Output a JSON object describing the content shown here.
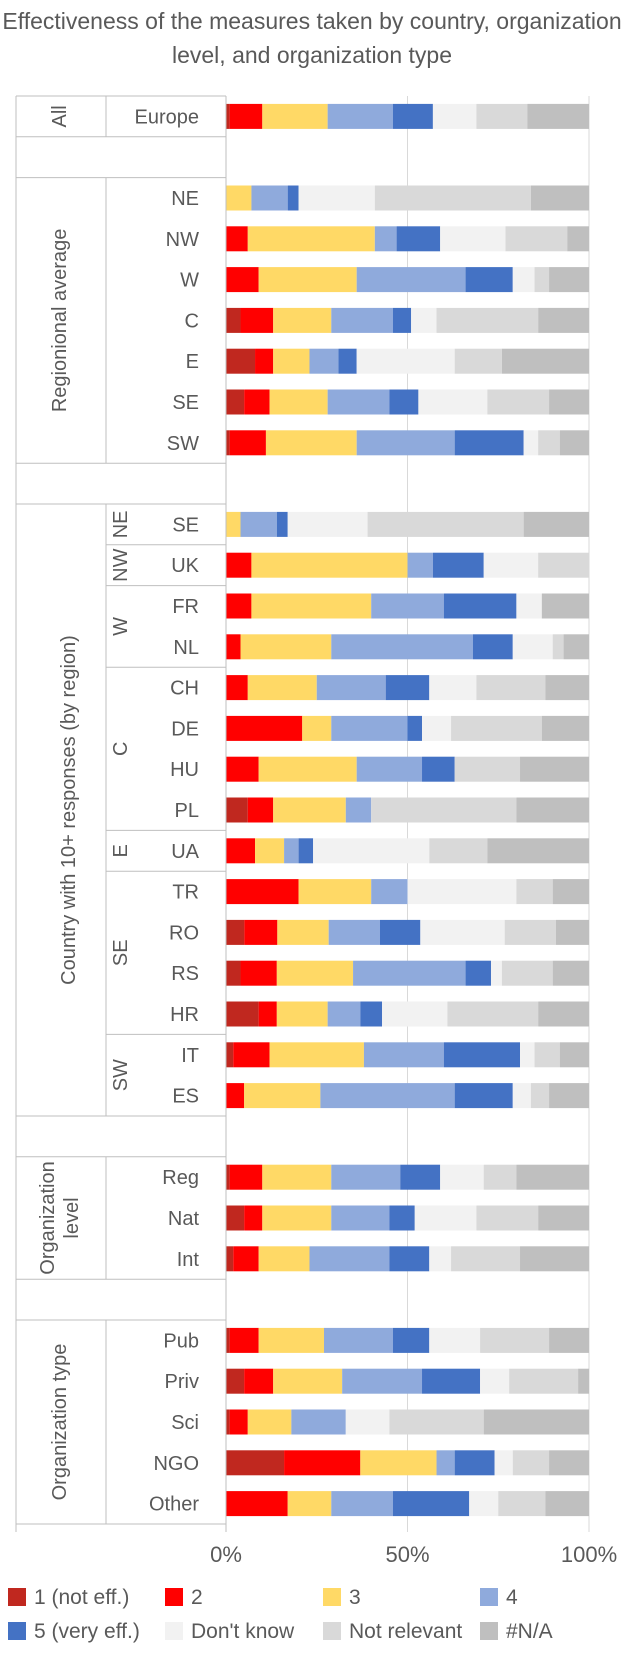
{
  "chart_data": {
    "type": "bar",
    "orientation": "horizontal",
    "stacked": "percent",
    "title": "Effectiveness of the measures taken by country, organization level, and organization type",
    "xlim": [
      0,
      100
    ],
    "xticks": [
      "0%",
      "50%",
      "100%"
    ],
    "legend_position": "bottom",
    "series_names": [
      "1 (not eff.)",
      "2",
      "3",
      "4",
      "5 (very eff.)",
      "Don't know",
      "Not relevant",
      "#N/A"
    ],
    "colors": [
      "#c0281f",
      "#ff0000",
      "#ffd966",
      "#8faadc",
      "#4472c4",
      "#f2f2f2",
      "#d9d9d9",
      "#bfbfbf"
    ],
    "groups": [
      {
        "label": "All",
        "subgroups": [
          {
            "label": "",
            "rows": [
              {
                "label": "Europe",
                "values": [
                  1,
                  9,
                  18,
                  18,
                  11,
                  12,
                  14,
                  17
                ]
              }
            ]
          }
        ]
      },
      {
        "label": "Regionional average",
        "subgroups": [
          {
            "label": "",
            "rows": [
              {
                "label": "NE",
                "values": [
                  0,
                  0,
                  7,
                  10,
                  3,
                  21,
                  43,
                  16
                ]
              },
              {
                "label": "NW",
                "values": [
                  0,
                  6,
                  35,
                  6,
                  12,
                  18,
                  17,
                  6
                ]
              },
              {
                "label": "W",
                "values": [
                  0,
                  9,
                  27,
                  30,
                  13,
                  6,
                  4,
                  11
                ]
              },
              {
                "label": "C",
                "values": [
                  4,
                  9,
                  16,
                  17,
                  5,
                  7,
                  28,
                  14
                ]
              },
              {
                "label": "E",
                "values": [
                  8,
                  5,
                  10,
                  8,
                  5,
                  27,
                  13,
                  24
                ]
              },
              {
                "label": "SE",
                "values": [
                  5,
                  7,
                  16,
                  17,
                  8,
                  19,
                  17,
                  11
                ]
              },
              {
                "label": "SW",
                "values": [
                  1,
                  10,
                  25,
                  27,
                  19,
                  4,
                  6,
                  8
                ]
              }
            ]
          }
        ]
      },
      {
        "label": "Country with 10+ responses (by region)",
        "subgroups": [
          {
            "label": "NE",
            "rows": [
              {
                "label": "SE",
                "values": [
                  0,
                  0,
                  4,
                  10,
                  3,
                  22,
                  43,
                  18
                ]
              }
            ]
          },
          {
            "label": "NW",
            "rows": [
              {
                "label": "UK",
                "values": [
                  0,
                  7,
                  43,
                  7,
                  14,
                  15,
                  14,
                  0
                ]
              }
            ]
          },
          {
            "label": "W",
            "rows": [
              {
                "label": "FR",
                "values": [
                  0,
                  7,
                  33,
                  20,
                  20,
                  7,
                  0,
                  13
                ]
              },
              {
                "label": "NL",
                "values": [
                  0,
                  4,
                  25,
                  39,
                  11,
                  11,
                  3,
                  7
                ]
              }
            ]
          },
          {
            "label": "C",
            "rows": [
              {
                "label": "CH",
                "values": [
                  0,
                  6,
                  19,
                  19,
                  12,
                  13,
                  19,
                  12
                ]
              },
              {
                "label": "DE",
                "values": [
                  0,
                  21,
                  8,
                  21,
                  4,
                  8,
                  25,
                  13
                ]
              },
              {
                "label": "HU",
                "values": [
                  0,
                  9,
                  27,
                  18,
                  9,
                  0,
                  18,
                  19
                ]
              },
              {
                "label": "PL",
                "values": [
                  6,
                  7,
                  20,
                  7,
                  0,
                  0,
                  40,
                  20
                ]
              }
            ]
          },
          {
            "label": "E",
            "rows": [
              {
                "label": "UA",
                "values": [
                  0,
                  8,
                  8,
                  4,
                  4,
                  32,
                  16,
                  28
                ]
              }
            ]
          },
          {
            "label": "SE",
            "rows": [
              {
                "label": "TR",
                "values": [
                  0,
                  20,
                  20,
                  10,
                  0,
                  30,
                  10,
                  10
                ]
              },
              {
                "label": "RO",
                "values": [
                  5,
                  9,
                  14,
                  14,
                  11,
                  23,
                  14,
                  9
                ]
              },
              {
                "label": "RS",
                "values": [
                  4,
                  10,
                  21,
                  31,
                  7,
                  3,
                  14,
                  10
                ]
              },
              {
                "label": "HR",
                "values": [
                  9,
                  5,
                  14,
                  9,
                  6,
                  18,
                  25,
                  14
                ]
              }
            ]
          },
          {
            "label": "SW",
            "rows": [
              {
                "label": "IT",
                "values": [
                  2,
                  10,
                  26,
                  22,
                  21,
                  4,
                  7,
                  8
                ]
              },
              {
                "label": "ES",
                "values": [
                  0,
                  5,
                  21,
                  37,
                  16,
                  5,
                  5,
                  11
                ]
              }
            ]
          }
        ]
      },
      {
        "label": "Organization level",
        "subgroups": [
          {
            "label": "",
            "rows": [
              {
                "label": "Reg",
                "values": [
                  1,
                  9,
                  19,
                  19,
                  11,
                  12,
                  9,
                  20
                ]
              },
              {
                "label": "Nat",
                "values": [
                  5,
                  5,
                  19,
                  16,
                  7,
                  17,
                  17,
                  14
                ]
              },
              {
                "label": "Int",
                "values": [
                  2,
                  7,
                  14,
                  22,
                  11,
                  6,
                  19,
                  19
                ]
              }
            ]
          }
        ]
      },
      {
        "label": "Organization type",
        "subgroups": [
          {
            "label": "",
            "rows": [
              {
                "label": "Pub",
                "values": [
                  1,
                  8,
                  18,
                  19,
                  10,
                  14,
                  19,
                  11
                ]
              },
              {
                "label": "Priv",
                "values": [
                  5,
                  8,
                  19,
                  22,
                  16,
                  8,
                  19,
                  3
                ]
              },
              {
                "label": "Sci",
                "values": [
                  1,
                  5,
                  12,
                  15,
                  0,
                  12,
                  26,
                  29
                ]
              },
              {
                "label": "NGO",
                "values": [
                  16,
                  21,
                  21,
                  5,
                  11,
                  5,
                  10,
                  11
                ]
              },
              {
                "label": "Other",
                "values": [
                  0,
                  17,
                  12,
                  17,
                  21,
                  8,
                  13,
                  12
                ]
              }
            ]
          }
        ]
      }
    ]
  }
}
